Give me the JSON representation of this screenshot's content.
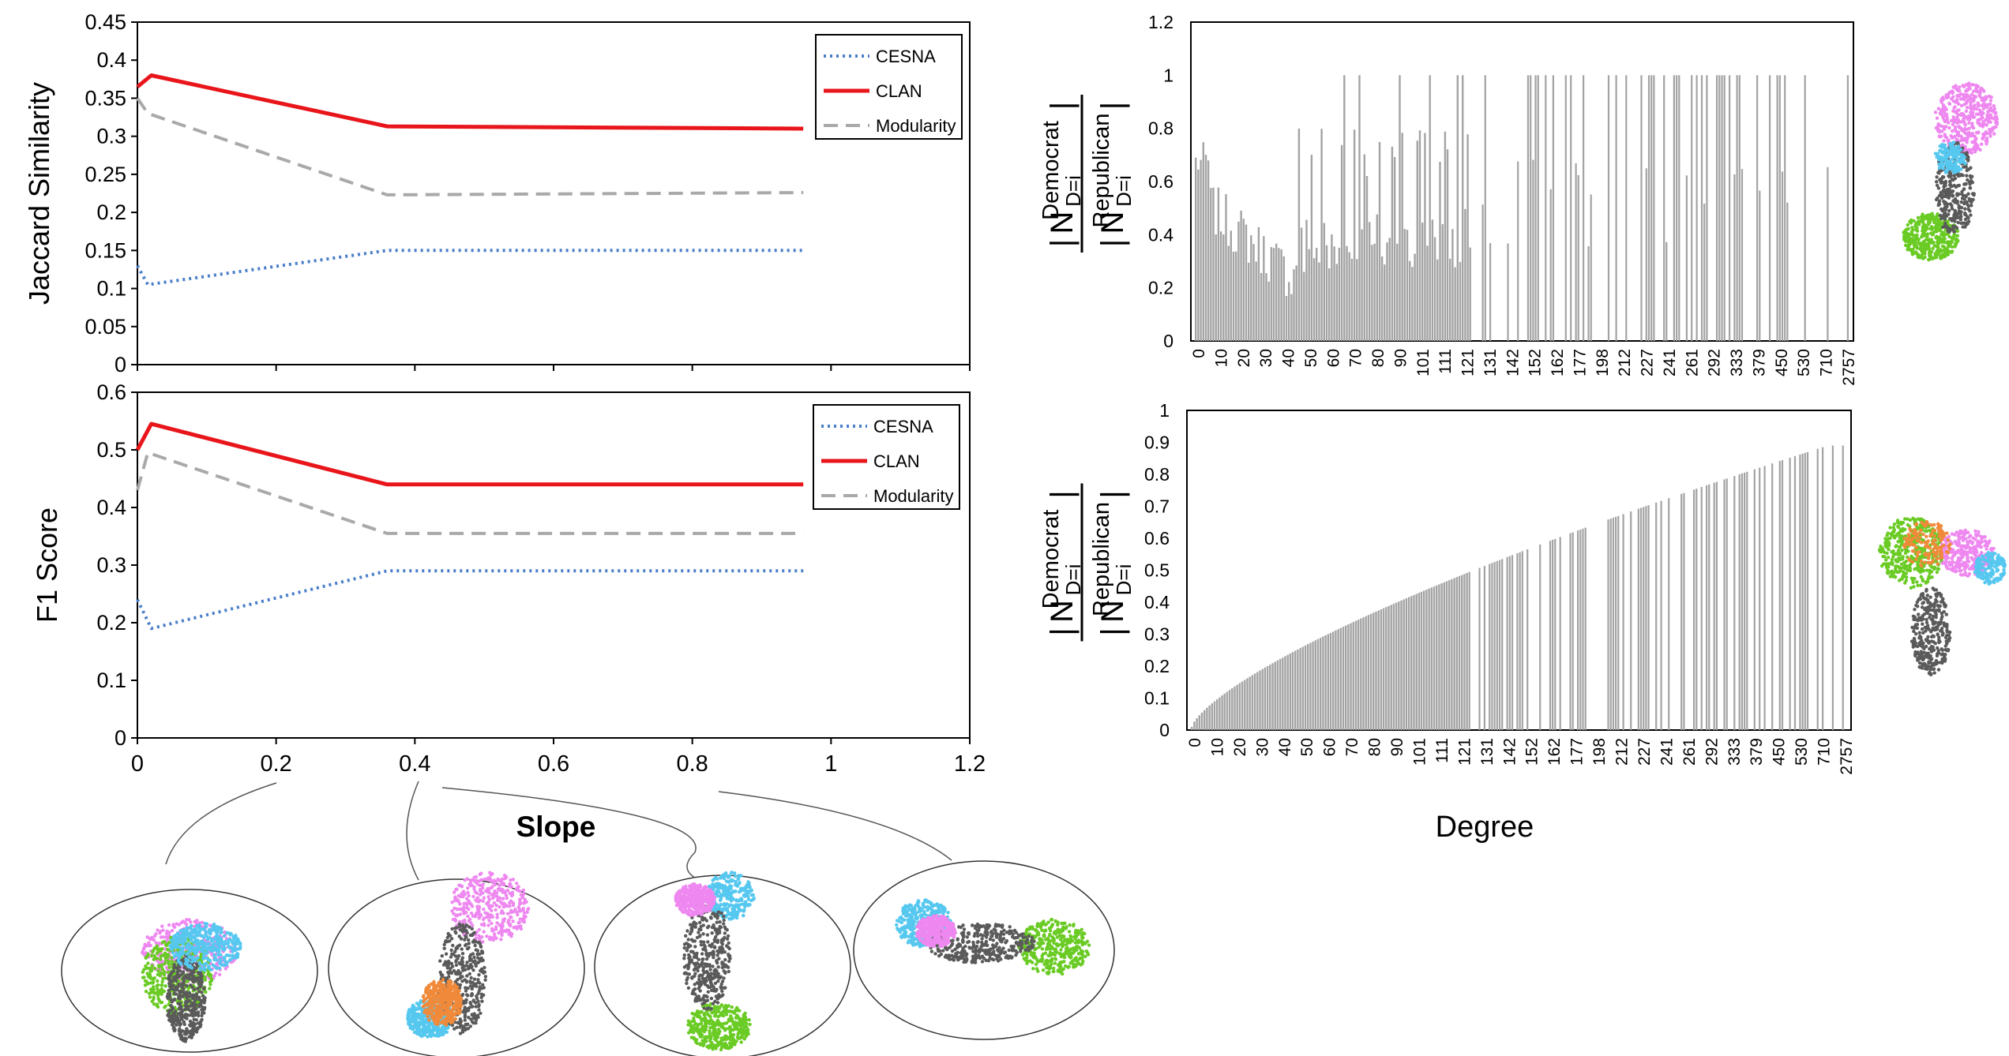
{
  "chart_data": [
    {
      "id": "jaccard",
      "type": "line",
      "ylabel": "Jaccard Similarity",
      "ylim": [
        0,
        0.45
      ],
      "yticks": [
        "0",
        "0.05",
        "0.1",
        "0.15",
        "0.2",
        "0.25",
        "0.3",
        "0.35",
        "0.4",
        "0.45"
      ],
      "xlim": [
        0,
        1.2
      ],
      "legend_placement": "top-right",
      "series": [
        {
          "name": "CESNA",
          "color": "#4a7ec8",
          "style": "dotted",
          "x": [
            0,
            0.015,
            0.36,
            0.96
          ],
          "y": [
            0.13,
            0.105,
            0.15,
            0.15
          ]
        },
        {
          "name": "CLAN",
          "color": "#e8151b",
          "style": "solid",
          "x": [
            0,
            0.02,
            0.36,
            0.96
          ],
          "y": [
            0.365,
            0.38,
            0.313,
            0.31
          ]
        },
        {
          "name": "Modularity",
          "color": "#a9a9a9",
          "style": "dashed",
          "x": [
            0,
            0.015,
            0.36,
            0.96
          ],
          "y": [
            0.35,
            0.33,
            0.223,
            0.226
          ]
        }
      ]
    },
    {
      "id": "f1",
      "type": "line",
      "ylabel": "F1  Score",
      "xlabel": "Slope",
      "ylim": [
        0,
        0.6
      ],
      "yticks": [
        "0",
        "0.1",
        "0.2",
        "0.3",
        "0.4",
        "0.5",
        "0.6"
      ],
      "xlim": [
        0,
        1.2
      ],
      "xticks": [
        "0",
        "0.2",
        "0.4",
        "0.6",
        "0.8",
        "1",
        "1.2"
      ],
      "legend_placement": "top-right",
      "series": [
        {
          "name": "CESNA",
          "color": "#4a7ec8",
          "style": "dotted",
          "x": [
            0,
            0.02,
            0.36,
            0.96
          ],
          "y": [
            0.24,
            0.19,
            0.29,
            0.29
          ]
        },
        {
          "name": "CLAN",
          "color": "#e8151b",
          "style": "solid",
          "x": [
            0,
            0.02,
            0.36,
            0.96
          ],
          "y": [
            0.5,
            0.545,
            0.44,
            0.44
          ]
        },
        {
          "name": "Modularity",
          "color": "#a9a9a9",
          "style": "dashed",
          "x": [
            0,
            0.015,
            0.36,
            0.96
          ],
          "y": [
            0.43,
            0.495,
            0.355,
            0.355
          ]
        }
      ]
    },
    {
      "id": "ratio-top",
      "type": "bar",
      "ylim": [
        0,
        1.2
      ],
      "yticks": [
        "0",
        "0.2",
        "0.4",
        "0.6",
        "0.8",
        "1",
        "1.2"
      ],
      "xlabel": "Degree",
      "xticks": [
        "0",
        "10",
        "20",
        "30",
        "40",
        "50",
        "60",
        "70",
        "80",
        "90",
        "101",
        "111",
        "121",
        "131",
        "142",
        "152",
        "162",
        "177",
        "198",
        "212",
        "227",
        "241",
        "261",
        "292",
        "333",
        "379",
        "450",
        "530",
        "710",
        "2757"
      ],
      "color": "#a3a3a3"
    },
    {
      "id": "ratio-bottom",
      "type": "bar",
      "ylim": [
        0,
        1
      ],
      "yticks": [
        "0",
        "0.1",
        "0.2",
        "0.3",
        "0.4",
        "0.5",
        "0.6",
        "0.7",
        "0.8",
        "0.9",
        "1"
      ],
      "xlabel": "Degree",
      "xticks": [
        "0",
        "10",
        "20",
        "30",
        "40",
        "50",
        "60",
        "70",
        "80",
        "90",
        "101",
        "111",
        "121",
        "131",
        "142",
        "152",
        "162",
        "177",
        "198",
        "212",
        "227",
        "241",
        "261",
        "292",
        "333",
        "379",
        "450",
        "530",
        "710",
        "2757"
      ],
      "color": "#a3a3a3"
    }
  ],
  "ratio_label": {
    "numerator": "Democrat",
    "denominator": "Republican",
    "subscript": "D=i",
    "symbol": "N"
  },
  "network_colors": [
    "#ee88f0",
    "#56c8f0",
    "#6acb24",
    "#5a5a5a",
    "#f08a3a"
  ]
}
